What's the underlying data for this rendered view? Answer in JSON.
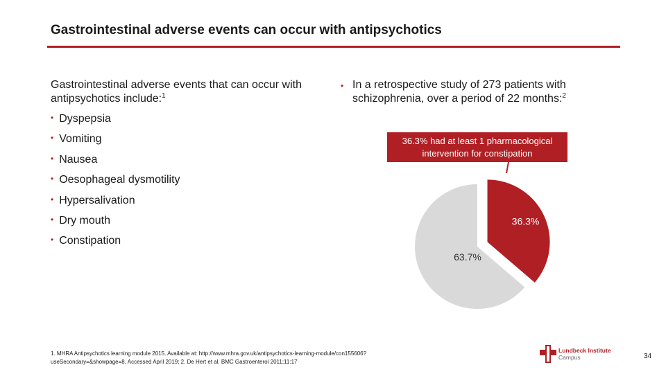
{
  "title": "Gastrointestinal adverse events can occur with antipsychotics",
  "left": {
    "intro": "Gastrointestinal adverse events that can occur with antipsychotics include:",
    "intro_ref": "1",
    "items": [
      "Dyspepsia",
      "Vomiting",
      "Nausea",
      "Oesophageal dysmotility",
      "Hypersalivation",
      "Dry mouth",
      "Constipation"
    ]
  },
  "right": {
    "intro": "In a retrospective study of 273 patients with schizophrenia, over a period of 22 months:",
    "intro_ref": "2",
    "callout": "36.3% had at least 1 pharmacological intervention for constipation"
  },
  "chart_data": {
    "type": "pie",
    "slices": [
      {
        "label": "36.3%",
        "value": 36.3,
        "color": "#b01f24"
      },
      {
        "label": "63.7%",
        "value": 63.7,
        "color": "#d9d9d9"
      }
    ]
  },
  "footnote": "1. MHRA Antipsychotics learning module 2015. Available at: http://www.mhra.gov.uk/antipsychotics-learning-module/con155606?useSecondary=&showpage=8, Accessed April 2019; 2. De Hert et al. BMC Gastroenterol 2011;11:17",
  "logo": {
    "line1": "Lundbeck Institute",
    "line2": "Campus",
    "icon": "lundbeck-cross-icon"
  },
  "page_number": "34",
  "colors": {
    "accent": "#b01f24",
    "slice_other": "#d9d9d9"
  }
}
